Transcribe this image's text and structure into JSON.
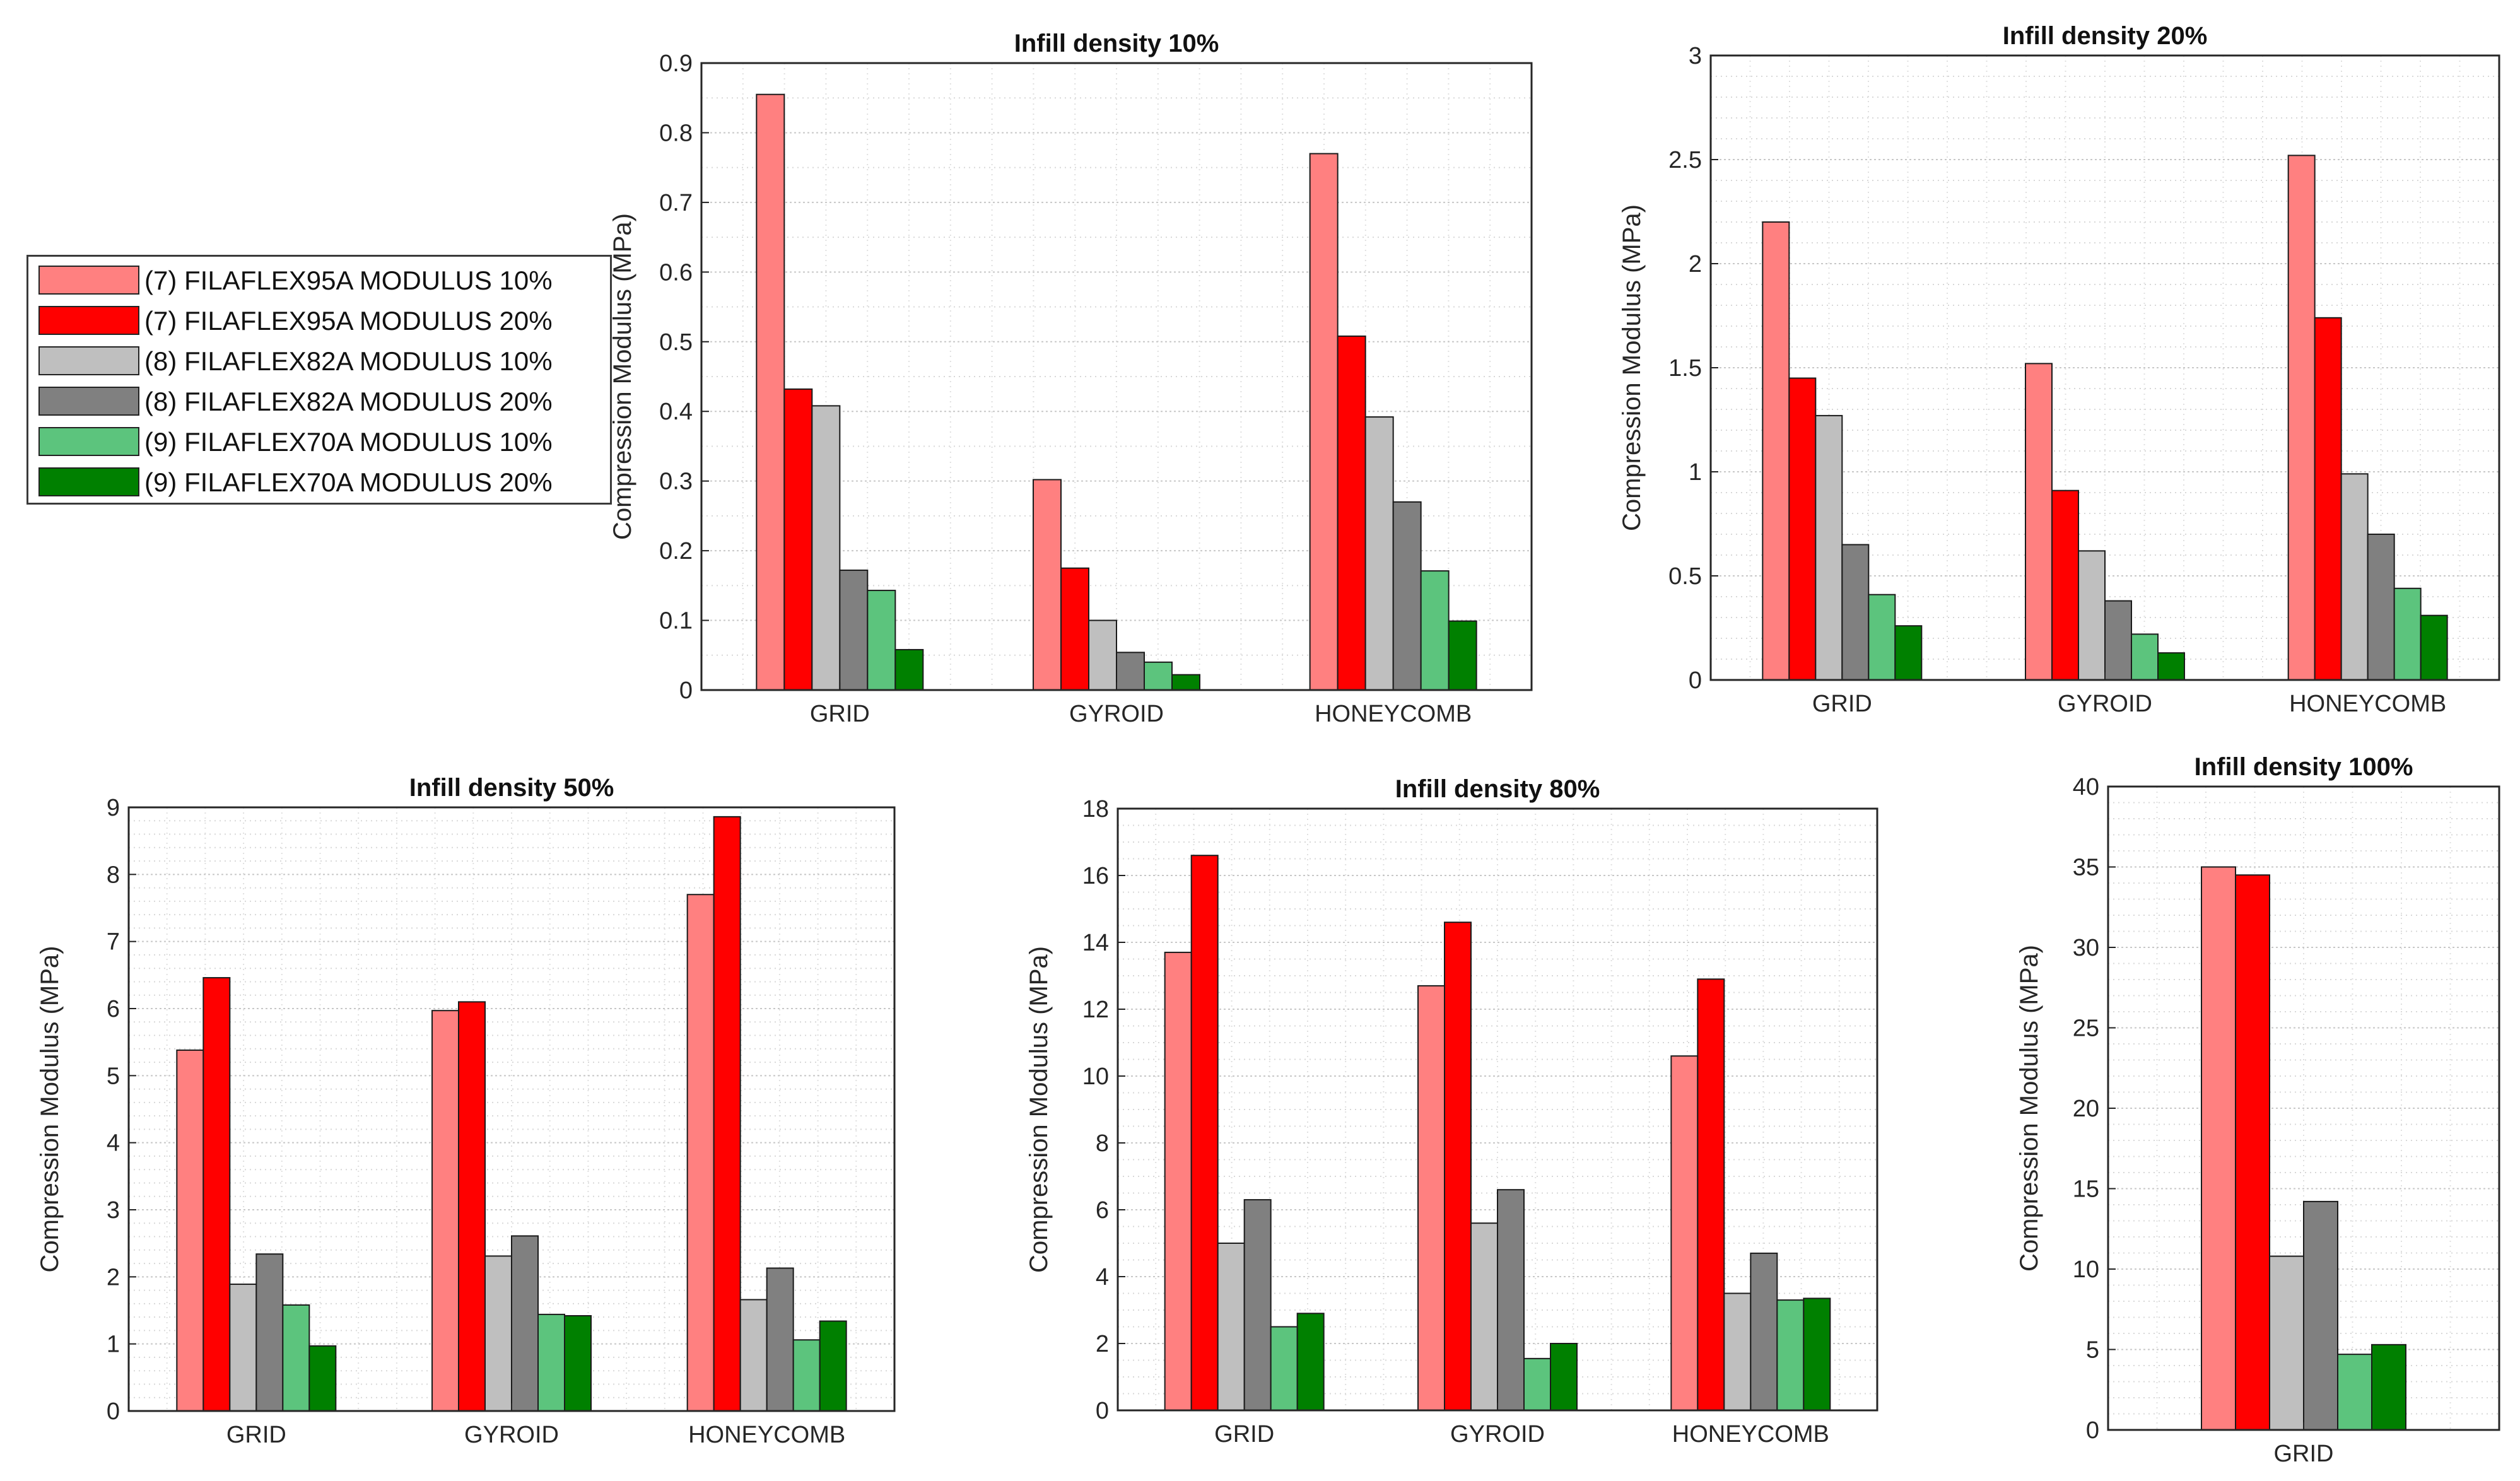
{
  "series": [
    {
      "name": "(7) FILAFLEX95A MODULUS 10%",
      "color": "#ff8080"
    },
    {
      "name": "(7) FILAFLEX95A MODULUS 20%",
      "color": "#ff0000"
    },
    {
      "name": "(8) FILAFLEX82A MODULUS 10%",
      "color": "#bfbfbf"
    },
    {
      "name": "(8) FILAFLEX82A MODULUS 20%",
      "color": "#808080"
    },
    {
      "name": "(9) FILAFLEX70A MODULUS 10%",
      "color": "#5cc47d"
    },
    {
      "name": "(9) FILAFLEX70A MODULUS 20%",
      "color": "#008000"
    }
  ],
  "chart_data": [
    {
      "type": "bar",
      "title": "Infill density 10%",
      "ylabel": "Compression Modulus (MPa)",
      "categories": [
        "GRID",
        "GYROID",
        "HONEYCOMB"
      ],
      "ylim": [
        0,
        0.9
      ],
      "yticks": [
        "0",
        "0.1",
        "0.2",
        "0.3",
        "0.4",
        "0.5",
        "0.6",
        "0.7",
        "0.8",
        "0.9"
      ],
      "grid": true,
      "series": [
        {
          "name": "(7) FILAFLEX95A MODULUS 10%",
          "values": [
            0.855,
            0.302,
            0.77
          ]
        },
        {
          "name": "(7) FILAFLEX95A MODULUS 20%",
          "values": [
            0.432,
            0.175,
            0.508
          ]
        },
        {
          "name": "(8) FILAFLEX82A MODULUS 10%",
          "values": [
            0.408,
            0.1,
            0.392
          ]
        },
        {
          "name": "(8) FILAFLEX82A MODULUS 20%",
          "values": [
            0.172,
            0.054,
            0.27
          ]
        },
        {
          "name": "(9) FILAFLEX70A MODULUS 10%",
          "values": [
            0.143,
            0.04,
            0.171
          ]
        },
        {
          "name": "(9) FILAFLEX70A MODULUS 20%",
          "values": [
            0.058,
            0.022,
            0.099
          ]
        }
      ]
    },
    {
      "type": "bar",
      "title": "Infill density 20%",
      "ylabel": "Compression Modulus (MPa)",
      "categories": [
        "GRID",
        "GYROID",
        "HONEYCOMB"
      ],
      "ylim": [
        0,
        3
      ],
      "yticks": [
        "0",
        "0.5",
        "1",
        "1.5",
        "2",
        "2.5",
        "3"
      ],
      "grid": true,
      "series": [
        {
          "name": "(7) FILAFLEX95A MODULUS 10%",
          "values": [
            2.2,
            1.52,
            2.52
          ]
        },
        {
          "name": "(7) FILAFLEX95A MODULUS 20%",
          "values": [
            1.45,
            0.91,
            1.74
          ]
        },
        {
          "name": "(8) FILAFLEX82A MODULUS 10%",
          "values": [
            1.27,
            0.62,
            0.99
          ]
        },
        {
          "name": "(8) FILAFLEX82A MODULUS 20%",
          "values": [
            0.65,
            0.38,
            0.7
          ]
        },
        {
          "name": "(9) FILAFLEX70A MODULUS 10%",
          "values": [
            0.41,
            0.22,
            0.44
          ]
        },
        {
          "name": "(9) FILAFLEX70A MODULUS 20%",
          "values": [
            0.26,
            0.13,
            0.31
          ]
        }
      ]
    },
    {
      "type": "bar",
      "title": "Infill density 50%",
      "ylabel": "Compression Modulus (MPa)",
      "categories": [
        "GRID",
        "GYROID",
        "HONEYCOMB"
      ],
      "ylim": [
        0,
        9
      ],
      "yticks": [
        "0",
        "1",
        "2",
        "3",
        "4",
        "5",
        "6",
        "7",
        "8",
        "9"
      ],
      "grid": true,
      "series": [
        {
          "name": "(7) FILAFLEX95A MODULUS 10%",
          "values": [
            5.38,
            5.97,
            7.7
          ]
        },
        {
          "name": "(7) FILAFLEX95A MODULUS 20%",
          "values": [
            6.46,
            6.1,
            8.86
          ]
        },
        {
          "name": "(8) FILAFLEX82A MODULUS 10%",
          "values": [
            1.89,
            2.31,
            1.66
          ]
        },
        {
          "name": "(8) FILAFLEX82A MODULUS 20%",
          "values": [
            2.34,
            2.61,
            2.13
          ]
        },
        {
          "name": "(9) FILAFLEX70A MODULUS 10%",
          "values": [
            1.58,
            1.44,
            1.06
          ]
        },
        {
          "name": "(9) FILAFLEX70A MODULUS 20%",
          "values": [
            0.97,
            1.42,
            1.34
          ]
        }
      ]
    },
    {
      "type": "bar",
      "title": "Infill density 80%",
      "ylabel": "Compression Modulus (MPa)",
      "categories": [
        "GRID",
        "GYROID",
        "HONEYCOMB"
      ],
      "ylim": [
        0,
        18
      ],
      "yticks": [
        "0",
        "2",
        "4",
        "6",
        "8",
        "10",
        "12",
        "14",
        "16",
        "18"
      ],
      "grid": true,
      "series": [
        {
          "name": "(7) FILAFLEX95A MODULUS 10%",
          "values": [
            13.7,
            12.7,
            10.6
          ]
        },
        {
          "name": "(7) FILAFLEX95A MODULUS 20%",
          "values": [
            16.6,
            14.6,
            12.9
          ]
        },
        {
          "name": "(8) FILAFLEX82A MODULUS 10%",
          "values": [
            5.0,
            5.6,
            3.5
          ]
        },
        {
          "name": "(8) FILAFLEX82A MODULUS 20%",
          "values": [
            6.3,
            6.6,
            4.7
          ]
        },
        {
          "name": "(9) FILAFLEX70A MODULUS 10%",
          "values": [
            2.5,
            1.55,
            3.3
          ]
        },
        {
          "name": "(9) FILAFLEX70A MODULUS 20%",
          "values": [
            2.9,
            2.0,
            3.35
          ]
        }
      ]
    },
    {
      "type": "bar",
      "title": "Infill density 100%",
      "ylabel": "Compression Modulus (MPa)",
      "categories": [
        "GRID"
      ],
      "ylim": [
        0,
        40
      ],
      "yticks": [
        "0",
        "5",
        "10",
        "15",
        "20",
        "25",
        "30",
        "35",
        "40"
      ],
      "grid": true,
      "series": [
        {
          "name": "(7) FILAFLEX95A MODULUS 10%",
          "values": [
            35.0
          ]
        },
        {
          "name": "(7) FILAFLEX95A MODULUS 20%",
          "values": [
            34.5
          ]
        },
        {
          "name": "(8) FILAFLEX82A MODULUS 10%",
          "values": [
            10.8
          ]
        },
        {
          "name": "(8) FILAFLEX82A MODULUS 20%",
          "values": [
            14.2
          ]
        },
        {
          "name": "(9) FILAFLEX70A MODULUS 10%",
          "values": [
            4.7
          ]
        },
        {
          "name": "(9) FILAFLEX70A MODULUS 20%",
          "values": [
            5.3
          ]
        }
      ]
    }
  ]
}
